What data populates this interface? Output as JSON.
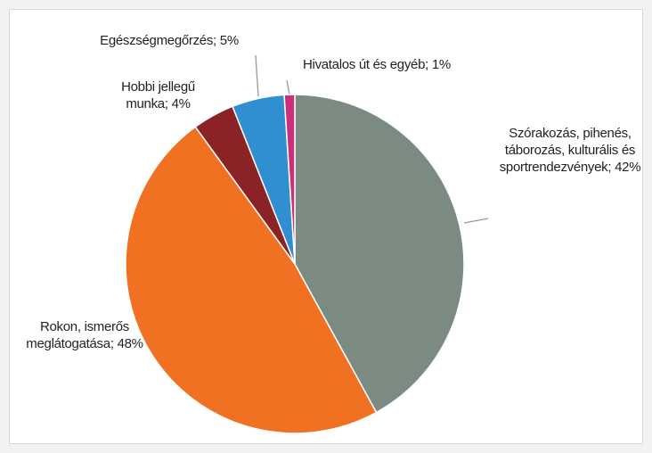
{
  "chart_data": {
    "type": "pie",
    "categories": [
      "Szórakozás, pihenés, táborozás, kulturális és sportrendezvények",
      "Rokon, ismerős meglátogatása",
      "Hobbi jellegű munka",
      "Egészségmegőrzés",
      "Hivatalos út és egyéb"
    ],
    "values": [
      42,
      48,
      4,
      5,
      1
    ],
    "value_labels": [
      "42%",
      "48%",
      "4%",
      "5%",
      "1%"
    ],
    "label_separator": ";",
    "colors": [
      "#7b8b82",
      "#f07122",
      "#8b2326",
      "#2f8fd1",
      "#c8317a"
    ]
  }
}
